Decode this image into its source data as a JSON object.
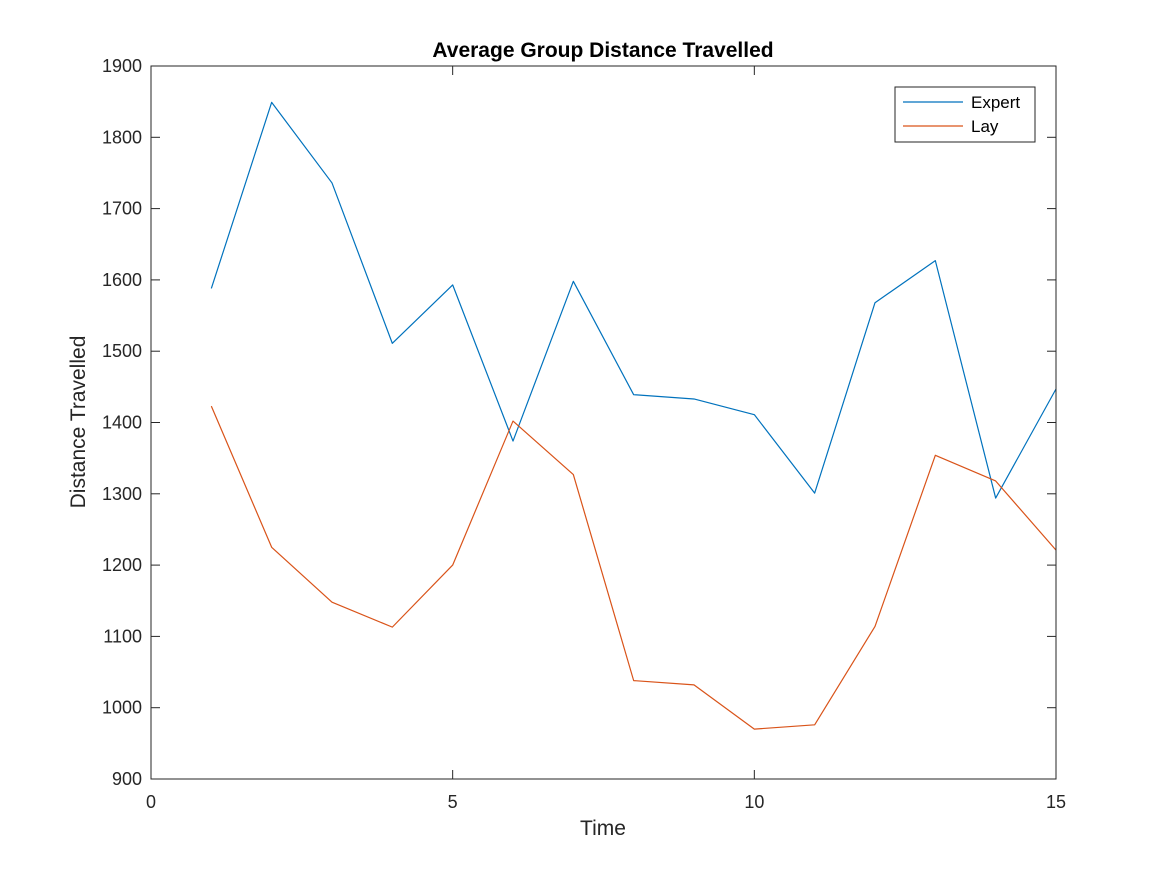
{
  "chart_data": {
    "type": "line",
    "title": "Average Group Distance Travelled",
    "xlabel": "Time",
    "ylabel": "Distance Travelled",
    "xlim": [
      0,
      15
    ],
    "ylim": [
      900,
      1900
    ],
    "xticks": [
      0,
      5,
      10,
      15
    ],
    "yticks": [
      900,
      1000,
      1100,
      1200,
      1300,
      1400,
      1500,
      1600,
      1700,
      1800,
      1900
    ],
    "grid": false,
    "legend_position": "top-right",
    "x": [
      1,
      2,
      3,
      4,
      5,
      6,
      7,
      8,
      9,
      10,
      11,
      12,
      13,
      14,
      15
    ],
    "series": [
      {
        "name": "Expert",
        "color": "#0072BD",
        "values": [
          1588,
          1849,
          1736,
          1511,
          1593,
          1374,
          1598,
          1439,
          1433,
          1411,
          1301,
          1568,
          1627,
          1294,
          1447
        ]
      },
      {
        "name": "Lay",
        "color": "#D95319",
        "values": [
          1423,
          1225,
          1148,
          1113,
          1200,
          1402,
          1327,
          1038,
          1032,
          970,
          976,
          1114,
          1354,
          1318,
          1221
        ]
      }
    ]
  }
}
